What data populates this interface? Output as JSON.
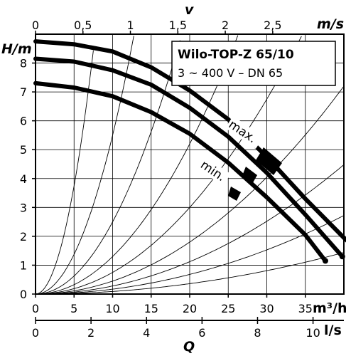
{
  "chart_data": {
    "type": "line",
    "title": "Wilo-TOP-Z 65/10",
    "subtitle": "3 ~ 400 V – DN 65",
    "xlabel": "Q",
    "ylabel": "H/m",
    "xlim": [
      0,
      40
    ],
    "ylim": [
      0,
      9
    ],
    "x_unit": "m³/h",
    "x_ticks": [
      "0",
      "5",
      "10",
      "15",
      "20",
      "25",
      "30",
      "35"
    ],
    "y_ticks": [
      "0",
      "1",
      "2",
      "3",
      "4",
      "5",
      "6",
      "7",
      "8"
    ],
    "secondary_x_unit": "l/s",
    "secondary_x_ticks": [
      "0",
      "2",
      "4",
      "6",
      "8",
      "10"
    ],
    "secondary_x_values": [
      0,
      2,
      4,
      6,
      8,
      10
    ],
    "top_axis_label": "v",
    "top_axis_unit": "m/s",
    "top_axis_ticks": [
      "0",
      "0,5",
      "1",
      "1,5",
      "2",
      "2,5"
    ],
    "top_axis_values": [
      0,
      0.5,
      1,
      1.5,
      2,
      2.5
    ],
    "grid": true,
    "series": [
      {
        "x": [
          0,
          5,
          10,
          15,
          20,
          25,
          30,
          35,
          40,
          42.3
        ],
        "y": [
          8.75,
          8.65,
          8.4,
          7.85,
          7.05,
          6.05,
          4.75,
          3.3,
          1.95,
          1.4
        ]
      },
      {
        "x": [
          0,
          5,
          10,
          15,
          20,
          25,
          30,
          35,
          39.8
        ],
        "y": [
          8.15,
          8.05,
          7.75,
          7.25,
          6.45,
          5.45,
          4.2,
          2.75,
          1.3
        ]
      },
      {
        "x": [
          0,
          5,
          10,
          15,
          20,
          25,
          30,
          35,
          37.6
        ],
        "y": [
          7.3,
          7.15,
          6.85,
          6.3,
          5.55,
          4.55,
          3.35,
          2.05,
          1.15
        ]
      }
    ],
    "curve_labels": [
      "max.",
      "min."
    ],
    "system_curves": true
  }
}
